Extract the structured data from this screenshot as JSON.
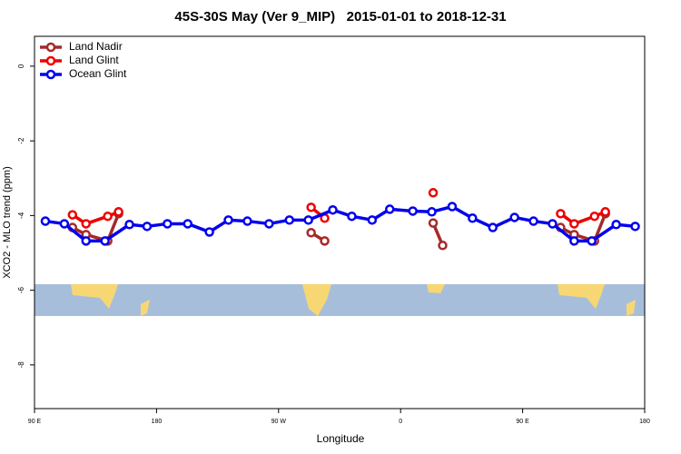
{
  "chart_data": {
    "type": "line",
    "title": "45S-30S May (Ver 9_MIP)   2015-01-01 to 2018-12-31",
    "x_label": "Longitude",
    "y_label": "XCO2 - MLO trend (ppm)",
    "xlim": [
      90,
      540
    ],
    "ylim": [
      -9.17,
      0.8
    ],
    "xticks": [
      {
        "value": 90,
        "label": "90 E"
      },
      {
        "value": 180,
        "label": "180"
      },
      {
        "value": 270,
        "label": "90 W"
      },
      {
        "value": 360,
        "label": "0"
      },
      {
        "value": 450,
        "label": "90 E"
      },
      {
        "value": 540,
        "label": "180"
      }
    ],
    "yticks": [
      0,
      -2,
      -4,
      -6,
      -8
    ],
    "legend": "top-left",
    "series": [
      {
        "name": "Land Nadir",
        "color": "#a52a2a",
        "x": [
          118,
          128,
          144,
          152,
          null,
          294,
          304,
          null,
          384,
          391,
          null,
          478,
          488,
          503,
          511
        ],
        "values": [
          -4.32,
          -4.51,
          -4.68,
          -3.95,
          null,
          -4.46,
          -4.68,
          null,
          -4.2,
          -4.8,
          null,
          -4.32,
          -4.51,
          -4.68,
          -3.95
        ]
      },
      {
        "name": "Land Glint",
        "color": "#ee0000",
        "x": [
          118,
          128,
          144,
          152,
          null,
          294,
          304,
          null,
          384,
          null,
          478,
          488,
          503,
          511
        ],
        "values": [
          -3.98,
          -4.22,
          -4.02,
          -3.9,
          null,
          -3.78,
          -4.07,
          null,
          -3.39,
          null,
          -3.95,
          -4.22,
          -4.02,
          -3.9
        ]
      },
      {
        "name": "Ocean Glint",
        "color": "#0000ee",
        "x": [
          98,
          112,
          128,
          142,
          160,
          173,
          188,
          203,
          219,
          233,
          247,
          263,
          278,
          292,
          310,
          324,
          339,
          352,
          369,
          383,
          398,
          413,
          428,
          444,
          458,
          472,
          488,
          501,
          519,
          533
        ],
        "values": [
          -4.15,
          -4.22,
          -4.68,
          -4.68,
          -4.24,
          -4.29,
          -4.22,
          -4.22,
          -4.44,
          -4.12,
          -4.15,
          -4.22,
          -4.12,
          -4.12,
          -3.85,
          -4.02,
          -4.12,
          -3.83,
          -3.88,
          -3.9,
          -3.76,
          -4.07,
          -4.32,
          -4.05,
          -4.15,
          -4.22,
          -4.68,
          -4.68,
          -4.24,
          -4.29
        ]
      }
    ]
  }
}
